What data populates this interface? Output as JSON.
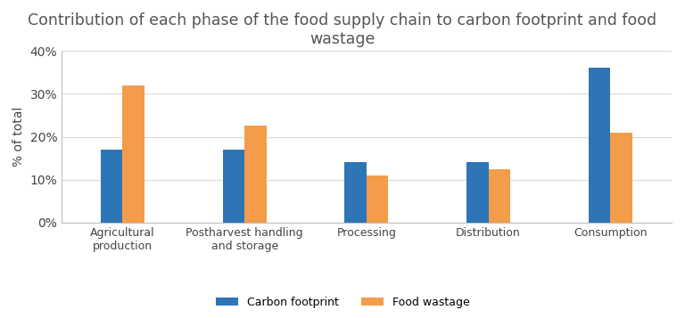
{
  "chart_data": {
    "type": "bar",
    "title": "Contribution of each phase of the food supply chain to carbon footprint and food wastage",
    "y_label": "% of total",
    "categories": [
      "Agricultural production",
      "Postharvest handling and storage",
      "Processing",
      "Distribution",
      "Consumption"
    ],
    "series": [
      {
        "name": "Carbon footprint",
        "color": "#2e75b6",
        "values": [
          17,
          17,
          14,
          14,
          36
        ]
      },
      {
        "name": "Food wastage",
        "color": "#f39c4a",
        "values": [
          32,
          22.5,
          11,
          12.5,
          21
        ]
      }
    ],
    "ylim": [
      0,
      40
    ],
    "yticks": [
      {
        "value": 0,
        "label": "0%"
      },
      {
        "value": 10,
        "label": "10%"
      },
      {
        "value": 20,
        "label": "20%"
      },
      {
        "value": 30,
        "label": "30%"
      },
      {
        "value": 40,
        "label": "40%"
      }
    ],
    "grid": true,
    "legend": "lower center"
  }
}
